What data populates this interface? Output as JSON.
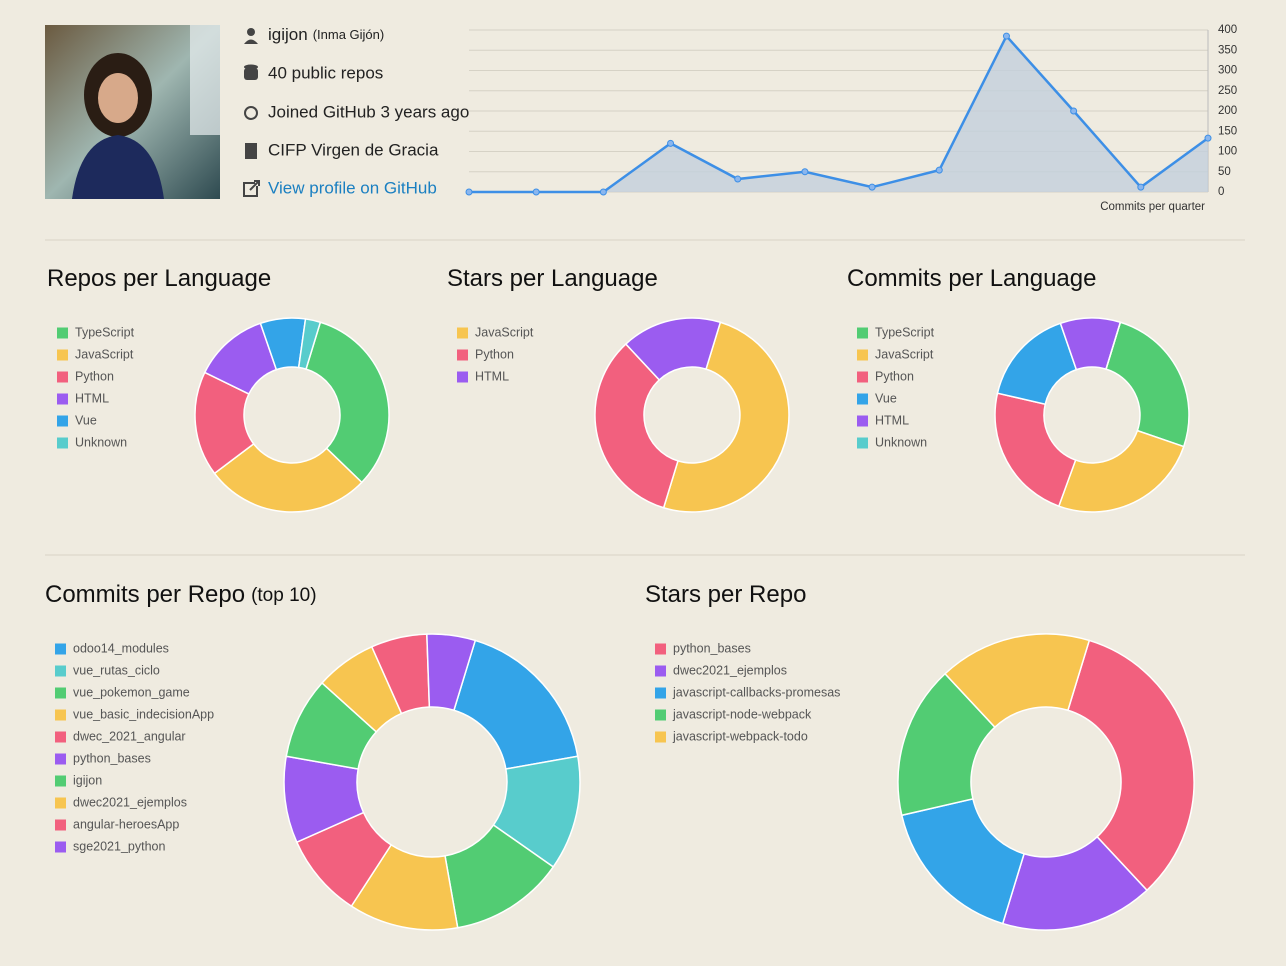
{
  "profile": {
    "login": "igijon",
    "name": "(Inma Gijón)",
    "repos": "40 public repos",
    "joined": "Joined GitHub 3 years ago",
    "company": "CIFP Virgen de Gracia",
    "link": "View profile on GitHub"
  },
  "chart_data": [
    {
      "type": "line",
      "x_label": "Commits per quarter",
      "categories": [
        null,
        null,
        null,
        null,
        null,
        null,
        null,
        null,
        null,
        null,
        null,
        null
      ],
      "values": [
        0,
        0,
        0,
        120,
        32,
        50,
        12,
        54,
        385,
        200,
        12,
        133
      ],
      "color": "#3d8fe6",
      "ylim": [
        0,
        400
      ],
      "yticks": [
        0,
        50,
        100,
        150,
        200,
        250,
        300,
        350,
        400
      ],
      "grid": true
    },
    {
      "type": "pie",
      "title": "Repos per Language",
      "categories": [
        "TypeScript",
        "JavaScript",
        "Python",
        "HTML",
        "Vue",
        "Unknown"
      ],
      "values": [
        13,
        11,
        7,
        5,
        3,
        1
      ],
      "colors": [
        "#52cc73",
        "#f7c550",
        "#f2607e",
        "#9b5cf0",
        "#33a4e8",
        "#58cccc"
      ]
    },
    {
      "type": "pie",
      "title": "Stars per Language",
      "categories": [
        "JavaScript",
        "Python",
        "HTML"
      ],
      "values": [
        3,
        2,
        1
      ],
      "colors": [
        "#f7c550",
        "#f2607e",
        "#9b5cf0"
      ]
    },
    {
      "type": "pie",
      "title": "Commits per Language",
      "categories": [
        "TypeScript",
        "JavaScript",
        "Python",
        "Vue",
        "HTML",
        "Unknown"
      ],
      "values": [
        92,
        91,
        83,
        58,
        36,
        0
      ],
      "colors": [
        "#52cc73",
        "#f7c550",
        "#f2607e",
        "#33a4e8",
        "#9b5cf0",
        "#58cccc"
      ]
    },
    {
      "type": "pie",
      "title": "Commits per Repo",
      "subtitle": "(top 10)",
      "categories": [
        "odoo14_modules",
        "vue_rutas_ciclo",
        "vue_pokemon_game",
        "vue_basic_indecisionApp",
        "dwec_2021_angular",
        "python_bases",
        "igijon",
        "dwec2021_ejemplos",
        "angular-heroesApp",
        "sge2021_python"
      ],
      "values": [
        63,
        45,
        45,
        43,
        33,
        34,
        32,
        24,
        22,
        19
      ],
      "colors": [
        "#33a4e8",
        "#58cccc",
        "#52cc73",
        "#f7c550",
        "#f2607e",
        "#9b5cf0",
        "#52cc73",
        "#f7c550",
        "#f2607e",
        "#9b5cf0"
      ]
    },
    {
      "type": "pie",
      "title": "Stars per Repo",
      "categories": [
        "python_bases",
        "dwec2021_ejemplos",
        "javascript-callbacks-promesas",
        "javascript-node-webpack",
        "javascript-webpack-todo"
      ],
      "values": [
        2,
        1,
        1,
        1,
        1
      ],
      "colors": [
        "#f2607e",
        "#9b5cf0",
        "#33a4e8",
        "#52cc73",
        "#f7c550"
      ]
    }
  ]
}
